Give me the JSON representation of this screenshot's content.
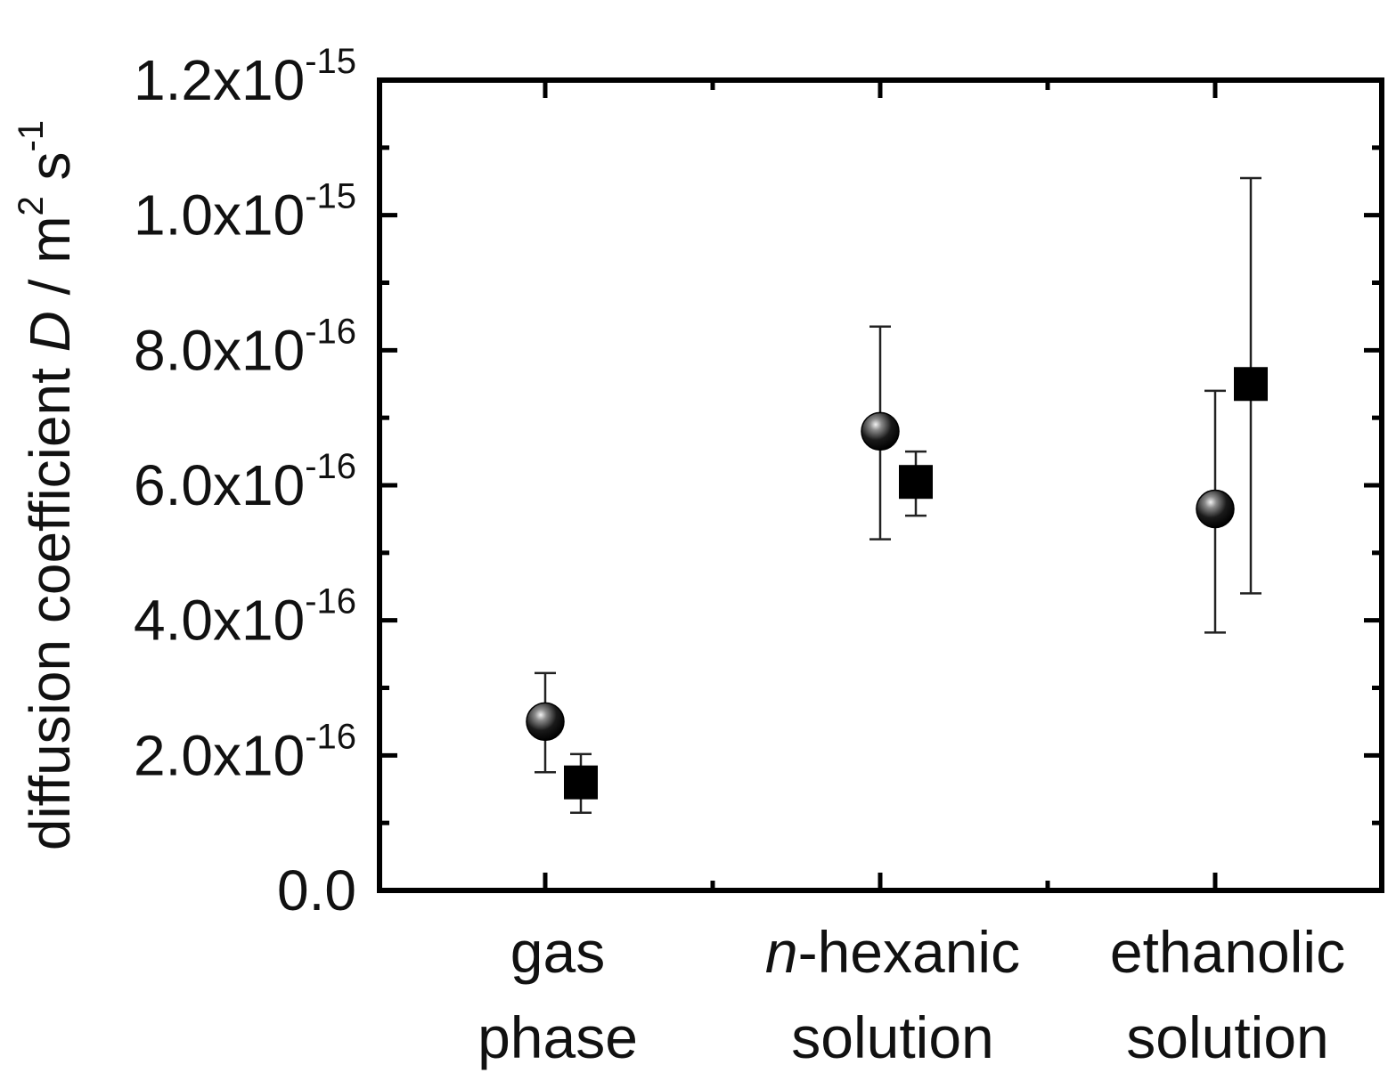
{
  "chart_data": {
    "type": "scatter",
    "categories": [
      "gas phase",
      "n-hexanic solution",
      "ethanolic solution"
    ],
    "category_labels": [
      {
        "lines": [
          {
            "italic": "",
            "text": "gas"
          },
          {
            "italic": "",
            "text": "phase"
          }
        ]
      },
      {
        "lines": [
          {
            "italic": "n",
            "text": "-hexanic"
          },
          {
            "italic": "",
            "text": "solution"
          }
        ]
      },
      {
        "lines": [
          {
            "italic": "",
            "text": "ethanolic"
          },
          {
            "italic": "",
            "text": "solution"
          }
        ]
      }
    ],
    "series": [
      {
        "marker": "sphere",
        "color": "#111111",
        "values": [
          2.5e-16,
          6.8e-16,
          5.65e-16
        ],
        "error_low": [
          1.75e-16,
          5.2e-16,
          3.82e-16
        ],
        "error_high": [
          3.22e-16,
          8.35e-16,
          7.4e-16
        ]
      },
      {
        "marker": "square",
        "color": "#000000",
        "values": [
          1.6e-16,
          6.05e-16,
          7.5e-16
        ],
        "error_low": [
          1.15e-16,
          5.55e-16,
          4.4e-16
        ],
        "error_high": [
          2.02e-16,
          6.5e-16,
          1.055e-15
        ]
      }
    ],
    "ylim": [
      0,
      1.2e-15
    ],
    "yticks": [
      {
        "mantissa": "0.0",
        "exponent": ""
      },
      {
        "mantissa": "2.0x10",
        "exponent": "-16"
      },
      {
        "mantissa": "4.0x10",
        "exponent": "-16"
      },
      {
        "mantissa": "6.0x10",
        "exponent": "-16"
      },
      {
        "mantissa": "8.0x10",
        "exponent": "-16"
      },
      {
        "mantissa": "1.0x10",
        "exponent": "-15"
      },
      {
        "mantissa": "1.2x10",
        "exponent": "-15"
      }
    ],
    "ylabel": {
      "prefix": "diffusion coefficient ",
      "symbol": "D",
      "unit_m": " / m",
      "unit_m_exp": "2",
      "unit_s": " s",
      "unit_s_exp": "-1"
    },
    "xlabel": "",
    "legend": "none",
    "grid": false
  }
}
